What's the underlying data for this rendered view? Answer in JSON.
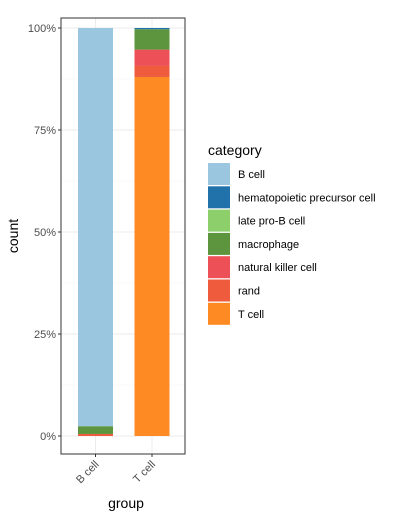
{
  "chart_data": {
    "type": "bar",
    "stacked": true,
    "percent": true,
    "xlabel": "group",
    "ylabel": "count",
    "categories": [
      "B cell",
      "T cell"
    ],
    "ylim": [
      0,
      1
    ],
    "y_ticks": [
      {
        "value": 0,
        "label": "0%"
      },
      {
        "value": 0.25,
        "label": "25%"
      },
      {
        "value": 0.5,
        "label": "50%"
      },
      {
        "value": 0.75,
        "label": "75%"
      },
      {
        "value": 1,
        "label": "100%"
      }
    ],
    "legend": {
      "title": "category",
      "placement": "right"
    },
    "grid": true,
    "series": [
      {
        "name": "B cell",
        "color": "#9ac6df",
        "values": [
          0.976,
          0.0
        ]
      },
      {
        "name": "hematopoietic precursor cell",
        "color": "#2171aa",
        "values": [
          0.0,
          0.003
        ]
      },
      {
        "name": "late pro-B cell",
        "color": "#8ccf6b",
        "values": [
          0.0,
          0.0
        ]
      },
      {
        "name": "macrophage",
        "color": "#5d953e",
        "values": [
          0.019,
          0.05
        ]
      },
      {
        "name": "natural killer cell",
        "color": "#ee5057",
        "values": [
          0.0,
          0.04
        ]
      },
      {
        "name": "rand",
        "color": "#ee5b3d",
        "values": [
          0.005,
          0.027
        ]
      },
      {
        "name": "T cell",
        "color": "#fd8a23",
        "values": [
          0.0,
          0.88
        ]
      }
    ]
  }
}
